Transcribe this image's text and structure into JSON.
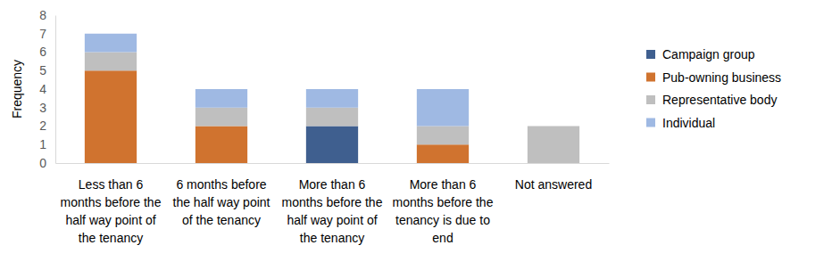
{
  "chart_data": {
    "type": "bar",
    "stacked": true,
    "legend": "right",
    "grid": false,
    "y_label": "Frequency",
    "categories": [
      "Less than 6 months before the half way point of the tenancy",
      "6 months before the half way point of the tenancy",
      "More than 6 months before the half way point of the tenancy",
      "More than 6 months before the tenancy is due to end",
      "Not answered"
    ],
    "ylim": [
      0,
      8
    ],
    "yticks": [
      0,
      1,
      2,
      3,
      4,
      5,
      6,
      7,
      8
    ],
    "series": [
      {
        "name": "Campaign group",
        "color": "#3f5f8f",
        "values": [
          0,
          0,
          2,
          0,
          0
        ]
      },
      {
        "name": "Pub-owning business",
        "color": "#d0732f",
        "values": [
          5,
          2,
          0,
          1,
          0
        ]
      },
      {
        "name": "Representative body",
        "color": "#bfbfbf",
        "values": [
          1,
          1,
          1,
          1,
          2
        ]
      },
      {
        "name": "Individual",
        "color": "#9fb9e3",
        "values": [
          1,
          1,
          1,
          2,
          0
        ]
      }
    ]
  }
}
